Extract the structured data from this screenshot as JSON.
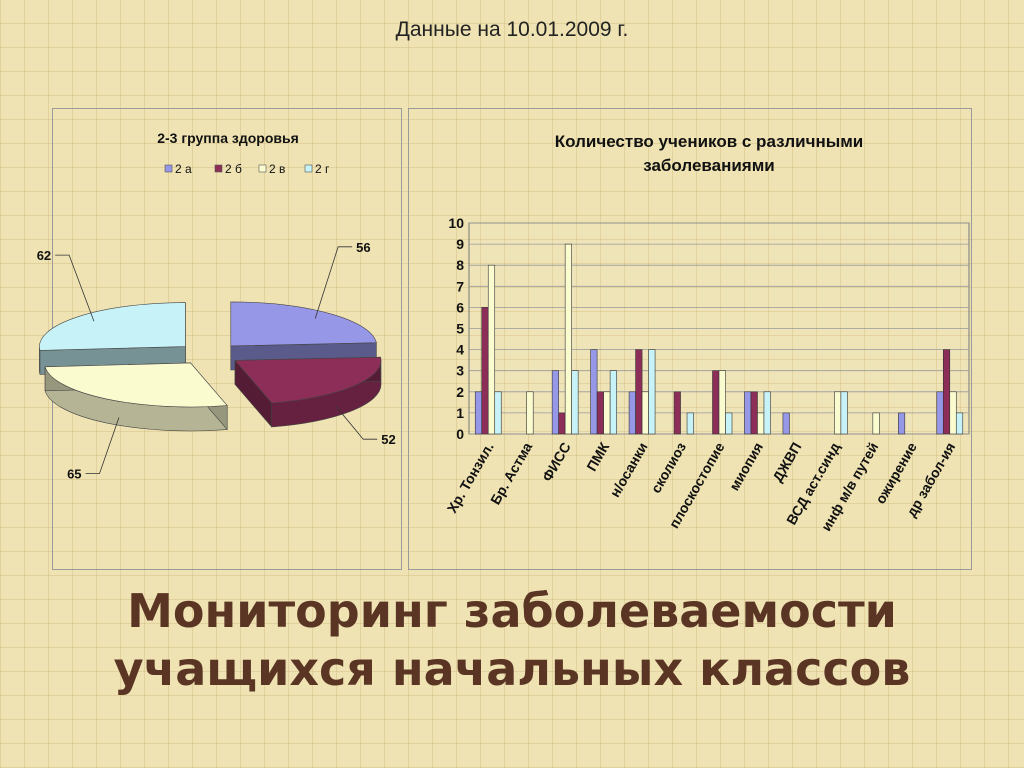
{
  "date_line": "Данные на 10.01.2009 г.",
  "main_title": {
    "line1": "Мониторинг заболеваемости",
    "line2": "учащихся начальных классов"
  },
  "colors": {
    "2 а": "#9797e8",
    "2 б": "#8c2e58",
    "2 в": "#fbfbd0",
    "2 г": "#c7f3f8"
  },
  "chart_data": [
    {
      "type": "pie",
      "title": "2-3 группа здоровья",
      "legend_position": "top",
      "slices": [
        {
          "label": "2 а",
          "value": 56,
          "color": "#9797e8"
        },
        {
          "label": "2 б",
          "value": 52,
          "color": "#8c2e58"
        },
        {
          "label": "2 в",
          "value": 65,
          "color": "#fbfbd0"
        },
        {
          "label": "2 г",
          "value": 62,
          "color": "#c7f3f8"
        }
      ]
    },
    {
      "type": "bar",
      "title": "Количество учеников с различными заболеваниями",
      "ylim": [
        0,
        10
      ],
      "yticks": [
        0,
        1,
        2,
        3,
        4,
        5,
        6,
        7,
        8,
        9,
        10
      ],
      "grid": true,
      "categories": [
        "Хр. Тонзил.",
        "Бр. Астма",
        "ФИСС",
        "ПМК",
        "н/осанки",
        "сколиоз",
        "плоскостопие",
        "миопия",
        "ДЖВП",
        "ВСД аст.синд",
        "инф м/в путей",
        "ожирение",
        "др забол-ия"
      ],
      "series": [
        {
          "name": "2 а",
          "color": "#9797e8",
          "values": [
            2,
            0,
            3,
            4,
            2,
            0,
            0,
            2,
            1,
            0,
            0,
            1,
            2
          ]
        },
        {
          "name": "2 б",
          "color": "#8c2e58",
          "values": [
            6,
            0,
            1,
            2,
            4,
            2,
            3,
            2,
            0,
            0,
            0,
            0,
            4
          ]
        },
        {
          "name": "2 в",
          "color": "#fbfbd0",
          "values": [
            8,
            2,
            9,
            2,
            2,
            0,
            3,
            1,
            0,
            2,
            1,
            0,
            2
          ]
        },
        {
          "name": "2 г",
          "color": "#c7f3f8",
          "values": [
            2,
            0,
            3,
            3,
            4,
            1,
            1,
            2,
            0,
            2,
            0,
            0,
            1
          ]
        }
      ]
    }
  ]
}
